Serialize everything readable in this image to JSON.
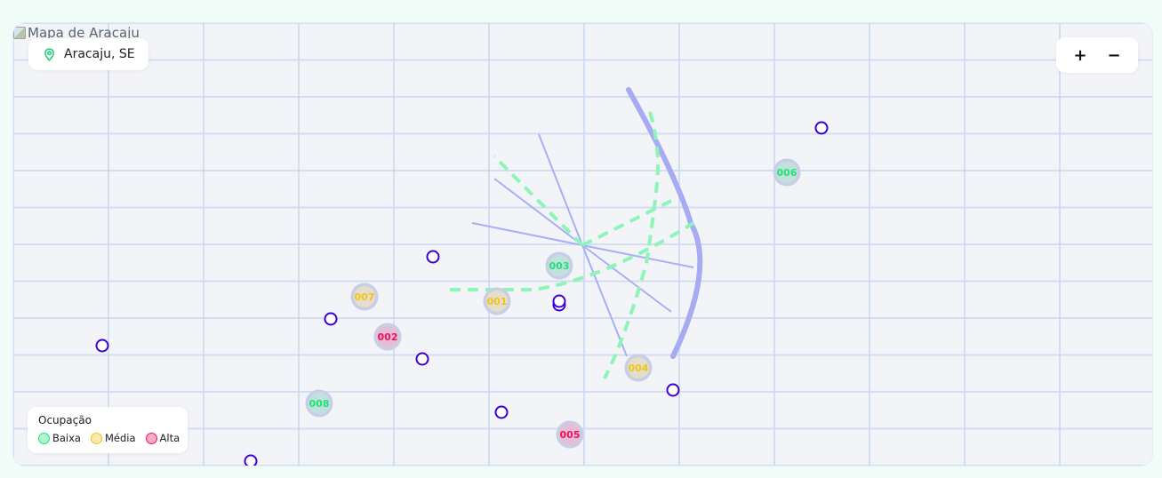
{
  "map": {
    "image_alt": "Mapa de Aracaju",
    "location_label": "Aracaju, SE",
    "location_icon": "map-pin-icon",
    "zoom_in_label": "+",
    "zoom_out_label": "−"
  },
  "colors": {
    "low": "#22e07a",
    "medium": "#f0c419",
    "high": "#f0125a",
    "marker_stroke": "#3c00d6",
    "route_dashed": "#8ef5b8",
    "route_solid": "#a9aff5",
    "route_thick": "#a6abf2"
  },
  "clusters": [
    {
      "id": "001",
      "level": "medium"
    },
    {
      "id": "002",
      "level": "high"
    },
    {
      "id": "003",
      "level": "low"
    },
    {
      "id": "004",
      "level": "medium"
    },
    {
      "id": "005",
      "level": "high"
    },
    {
      "id": "006",
      "level": "low"
    },
    {
      "id": "007",
      "level": "medium"
    },
    {
      "id": "008",
      "level": "low"
    }
  ],
  "legend": {
    "title": "Ocupação",
    "items": [
      {
        "label": "Baixa",
        "level": "low"
      },
      {
        "label": "Média",
        "level": "medium"
      },
      {
        "label": "Alta",
        "level": "high"
      }
    ]
  }
}
